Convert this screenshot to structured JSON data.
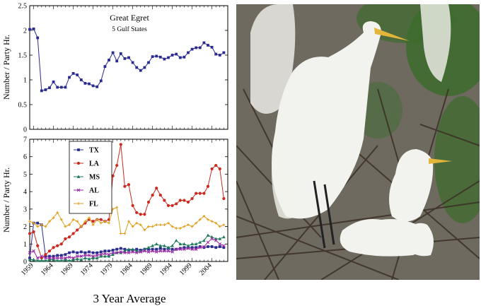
{
  "chart_data": [
    {
      "type": "line",
      "title": "Great Egret",
      "subtitle": "5 Gulf States",
      "ylabel": "Number / Party Hr.",
      "ylim": [
        0,
        2.5
      ],
      "yticks": [
        "0",
        "0.5",
        "1",
        "1.5",
        "2",
        "2.5"
      ],
      "xlim": [
        1958,
        2008
      ],
      "series": [
        {
          "color": "#2b2b8f",
          "marker": "square",
          "x": [
            1958,
            1959,
            1960,
            1961,
            1962,
            1963,
            1964,
            1965,
            1966,
            1967,
            1968,
            1969,
            1970,
            1971,
            1972,
            1973,
            1974,
            1975,
            1976,
            1977,
            1978,
            1979,
            1980,
            1981,
            1982,
            1983,
            1984,
            1985,
            1986,
            1987,
            1988,
            1989,
            1990,
            1991,
            1992,
            1993,
            1994,
            1995,
            1996,
            1997,
            1998,
            1999,
            2000,
            2001,
            2002,
            2003,
            2004,
            2005,
            2006,
            2007
          ],
          "y": [
            2.02,
            2.03,
            1.85,
            0.78,
            0.8,
            0.84,
            0.96,
            0.85,
            0.85,
            0.85,
            1.05,
            1.13,
            1.1,
            1.0,
            0.93,
            0.92,
            0.88,
            0.86,
            0.98,
            1.27,
            1.4,
            1.55,
            1.38,
            1.53,
            1.43,
            1.45,
            1.35,
            1.25,
            1.19,
            1.25,
            1.35,
            1.47,
            1.48,
            1.46,
            1.42,
            1.45,
            1.5,
            1.52,
            1.45,
            1.46,
            1.55,
            1.62,
            1.65,
            1.65,
            1.75,
            1.7,
            1.66,
            1.52,
            1.5,
            1.55
          ]
        }
      ]
    },
    {
      "type": "line",
      "ylabel": "Number / Party Hr.",
      "xlabel": "3 Year Average",
      "ylim": [
        0,
        7
      ],
      "yticks": [
        "0",
        "1",
        "2",
        "3",
        "4",
        "5",
        "6",
        "7"
      ],
      "xlim": [
        1958,
        2008
      ],
      "xticks": [
        "1959",
        "1964",
        "1969",
        "1974",
        "1979",
        "1984",
        "1989",
        "1994",
        "1999",
        "2004"
      ],
      "series": [
        {
          "name": "TX",
          "color": "#2b2b8f",
          "marker": "square",
          "x": [
            1958,
            1959,
            1960,
            1961,
            1962,
            1963,
            1964,
            1965,
            1966,
            1967,
            1968,
            1969,
            1970,
            1971,
            1972,
            1973,
            1974,
            1975,
            1976,
            1977,
            1978,
            1979,
            1980,
            1981,
            1982,
            1983,
            1984,
            1985,
            1986,
            1987,
            1988,
            1989,
            1990,
            1991,
            1992,
            1993,
            1994,
            1995,
            1996,
            1997,
            1998,
            1999,
            2000,
            2001,
            2002,
            2003,
            2004,
            2005,
            2006,
            2007
          ],
          "y": [
            0.2,
            2.2,
            2.2,
            2.1,
            0.3,
            0.3,
            0.3,
            0.35,
            0.35,
            0.4,
            0.5,
            0.55,
            0.5,
            0.55,
            0.5,
            0.55,
            0.5,
            0.5,
            0.55,
            0.6,
            0.6,
            0.65,
            0.7,
            0.75,
            0.7,
            0.65,
            0.65,
            0.7,
            0.65,
            0.7,
            0.7,
            0.7,
            0.7,
            0.75,
            0.7,
            0.75,
            0.7,
            0.7,
            0.75,
            0.8,
            0.8,
            0.8,
            0.8,
            0.85,
            0.8,
            0.85,
            0.85,
            0.8,
            0.85,
            0.8
          ]
        },
        {
          "name": "LA",
          "color": "#cc2a1f",
          "marker": "circle",
          "x": [
            1958,
            1959,
            1960,
            1961,
            1962,
            1963,
            1964,
            1965,
            1966,
            1967,
            1968,
            1969,
            1970,
            1971,
            1972,
            1973,
            1974,
            1975,
            1976,
            1977,
            1978,
            1979,
            1980,
            1981,
            1982,
            1983,
            1984,
            1985,
            1986,
            1987,
            1988,
            1989,
            1990,
            1991,
            1992,
            1993,
            1994,
            1995,
            1996,
            1997,
            1998,
            1999,
            2000,
            2001,
            2002,
            2003,
            2004,
            2005,
            2006,
            2007
          ],
          "y": [
            1.6,
            1.7,
            0.9,
            0.2,
            0.4,
            0.6,
            0.8,
            0.9,
            1.0,
            1.3,
            1.4,
            1.6,
            1.8,
            2.0,
            2.2,
            2.4,
            2.3,
            2.4,
            2.4,
            2.3,
            2.4,
            4.9,
            5.5,
            6.7,
            4.3,
            4.4,
            3.2,
            2.8,
            2.7,
            2.7,
            3.4,
            3.8,
            4.2,
            3.8,
            3.5,
            3.2,
            3.2,
            3.3,
            3.5,
            3.5,
            3.4,
            3.6,
            3.9,
            3.9,
            3.9,
            4.3,
            5.3,
            5.5,
            5.3,
            3.6
          ]
        },
        {
          "name": "MS",
          "color": "#1e7a5c",
          "marker": "triangle",
          "x": [
            1958,
            1959,
            1960,
            1961,
            1962,
            1963,
            1964,
            1965,
            1966,
            1967,
            1968,
            1969,
            1970,
            1971,
            1972,
            1973,
            1974,
            1975,
            1976,
            1977,
            1978,
            1979,
            1980,
            1981,
            1982,
            1983,
            1984,
            1985,
            1986,
            1987,
            1988,
            1989,
            1990,
            1991,
            1992,
            1993,
            1994,
            1995,
            1996,
            1997,
            1998,
            1999,
            2000,
            2001,
            2002,
            2003,
            2004,
            2005,
            2006,
            2007
          ],
          "y": [
            0.1,
            0.1,
            0.05,
            0.05,
            0.05,
            0.1,
            0.1,
            0.05,
            0.05,
            0.1,
            0.05,
            0.1,
            0.15,
            0.1,
            0.2,
            0.15,
            0.2,
            0.2,
            0.3,
            0.3,
            0.3,
            0.4,
            0.5,
            0.5,
            0.6,
            0.7,
            0.7,
            0.6,
            0.6,
            0.7,
            0.8,
            0.9,
            1.0,
            0.9,
            0.9,
            0.8,
            0.9,
            1.2,
            1.0,
            1.0,
            0.9,
            1.0,
            1.0,
            1.1,
            1.2,
            1.5,
            1.4,
            1.3,
            1.3,
            1.4
          ]
        },
        {
          "name": "AL",
          "color": "#9a2aa8",
          "marker": "x",
          "x": [
            1958,
            1959,
            1960,
            1961,
            1962,
            1963,
            1964,
            1965,
            1966,
            1967,
            1968,
            1969,
            1970,
            1971,
            1972,
            1973,
            1974,
            1975,
            1976,
            1977,
            1978,
            1979,
            1980,
            1981,
            1982,
            1983,
            1984,
            1985,
            1986,
            1987,
            1988,
            1989,
            1990,
            1991,
            1992,
            1993,
            1994,
            1995,
            1996,
            1997,
            1998,
            1999,
            2000,
            2001,
            2002,
            2003,
            2004,
            2005,
            2006,
            2007
          ],
          "y": [
            0.5,
            0.6,
            0.2,
            0.3,
            0.2,
            0.2,
            0.2,
            0.2,
            0.2,
            0.2,
            0.25,
            0.2,
            0.3,
            0.3,
            0.35,
            0.35,
            0.3,
            0.35,
            0.4,
            0.45,
            0.4,
            0.5,
            0.5,
            0.55,
            0.5,
            0.5,
            0.55,
            0.5,
            0.55,
            0.6,
            0.55,
            0.6,
            0.55,
            0.6,
            0.6,
            0.6,
            0.55,
            0.7,
            0.7,
            0.7,
            0.75,
            0.7,
            0.7,
            0.8,
            0.85,
            1.1,
            1.3,
            1.2,
            1.0,
            0.9
          ]
        },
        {
          "name": "FL",
          "color": "#e0a020",
          "marker": "plus",
          "x": [
            1958,
            1959,
            1960,
            1961,
            1962,
            1963,
            1964,
            1965,
            1966,
            1967,
            1968,
            1969,
            1970,
            1971,
            1972,
            1973,
            1974,
            1975,
            1976,
            1977,
            1978,
            1979,
            1980,
            1981,
            1982,
            1983,
            1984,
            1985,
            1986,
            1987,
            1988,
            1989,
            1990,
            1991,
            1992,
            1993,
            1994,
            1995,
            1996,
            1997,
            1998,
            1999,
            2000,
            2001,
            2002,
            2003,
            2004,
            2005,
            2006,
            2007
          ],
          "y": [
            2.3,
            2.2,
            2.0,
            2.1,
            2.0,
            2.3,
            2.5,
            2.8,
            2.4,
            2.0,
            2.1,
            2.4,
            2.3,
            2.0,
            2.3,
            2.5,
            2.1,
            2.4,
            2.2,
            2.3,
            2.2,
            3.0,
            3.1,
            1.6,
            1.6,
            2.3,
            2.0,
            2.2,
            2.1,
            1.8,
            2.0,
            2.0,
            2.1,
            2.1,
            2.1,
            2.2,
            2.0,
            1.9,
            1.9,
            2.0,
            2.1,
            2.0,
            2.2,
            2.4,
            2.6,
            2.4,
            2.3,
            2.2,
            2.0,
            2.1
          ]
        }
      ]
    }
  ],
  "photo": {
    "background": "#6f6a60",
    "foliage": "#3e6b2e",
    "bird_white": "#f2f2ee",
    "beak": "#e3b53b",
    "legs": "#222222"
  }
}
